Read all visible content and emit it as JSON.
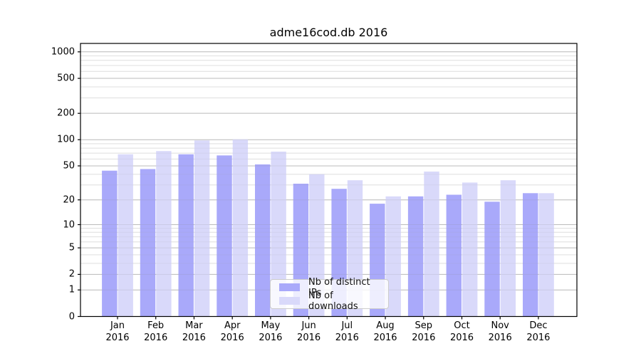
{
  "chart_data": {
    "type": "bar",
    "title": "adme16cod.db 2016",
    "categories": [
      "Jan",
      "Feb",
      "Mar",
      "Apr",
      "May",
      "Jun",
      "Jul",
      "Aug",
      "Sep",
      "Oct",
      "Nov",
      "Dec"
    ],
    "year_label": "2016",
    "series": [
      {
        "name": "Nb of distinct IPs",
        "key": "distinct-ips",
        "color": "#a9a9fa",
        "values": [
          44,
          46,
          68,
          66,
          52,
          31,
          27,
          18,
          22,
          23,
          19,
          24
        ]
      },
      {
        "name": "Nb of downloads",
        "key": "downloads",
        "color": "#d9d9fa",
        "values": [
          68,
          74,
          98,
          101,
          73,
          40,
          34,
          22,
          43,
          32,
          34,
          24
        ]
      }
    ],
    "xlabel": "",
    "ylabel": "",
    "y_scale": "log1p",
    "y_ticks": [
      0,
      1,
      2,
      5,
      10,
      20,
      50,
      100,
      200,
      500,
      1000
    ],
    "ylim": [
      0,
      1258
    ],
    "grid": "horizontal-major-and-minor",
    "legend_position": "lower-center"
  },
  "colors": {
    "background": "#ffffff",
    "spine": "#000000",
    "grid_major": "#c6c6c6",
    "grid_minor": "#e9e9e9",
    "text": "#000000"
  }
}
